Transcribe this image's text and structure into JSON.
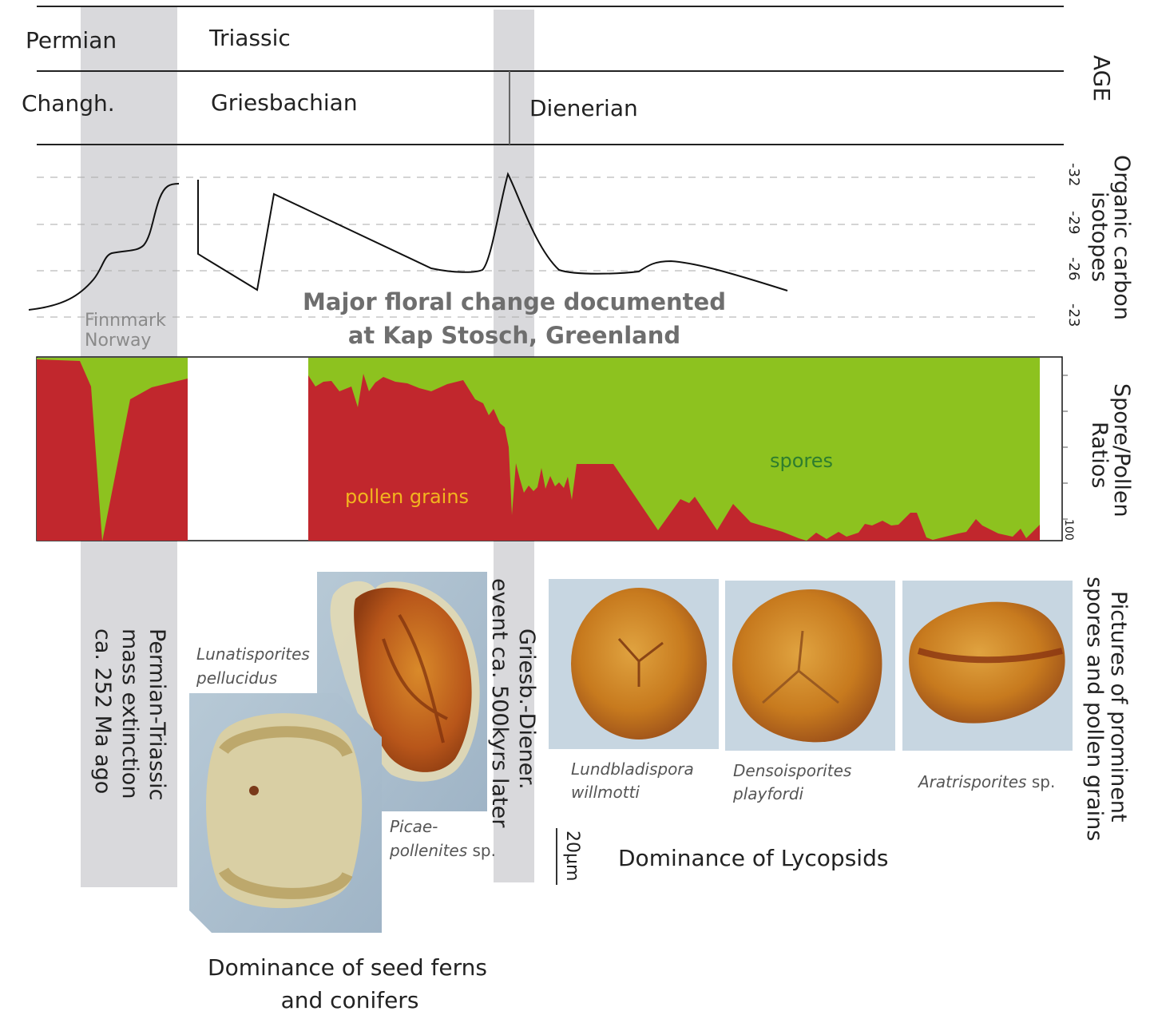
{
  "age": {
    "axis_label": "AGE",
    "periods": [
      "Permian",
      "Triassic"
    ],
    "stages": [
      "Changh.",
      "Griesbachian",
      "Dienerian"
    ]
  },
  "isotopes": {
    "axis_label_line1": "Organic carbon",
    "axis_label_line2": "isotopes",
    "ticks": [
      "-32",
      "-29",
      "-26",
      "-23"
    ]
  },
  "locations": {
    "finnmark_line1": "Finnmark",
    "finnmark_line2": "Norway",
    "kap_line1": "Major floral change documented",
    "kap_line2": "at Kap Stosch, Greenland"
  },
  "ratios": {
    "axis_label_line1": "Spore/Pollen",
    "axis_label_line2": "Ratios",
    "tick": "100",
    "spores_label": "spores",
    "pollen_label": "pollen grains",
    "colors": {
      "spores": "#8dc21f",
      "pollen": "#c1272d"
    }
  },
  "events": {
    "extinction_line1": "Permian-Triassic",
    "extinction_line2": "mass extinction",
    "extinction_line3": "ca. 252 Ma ago",
    "griesb_line1": "Griesb.-Diener.",
    "griesb_line2": "event  ca. 500kyrs later"
  },
  "pictures": {
    "axis_label_line1": "Pictures of prominent",
    "axis_label_line2": "spores and pollen grains",
    "lunatisporites_line1": "Lunatisporites",
    "lunatisporites_line2": "pellucidus",
    "picae_line1": "Picae-",
    "picae_line2": "pollenites",
    "picae_suffix": " sp.",
    "lundbladispora_line1": "Lundbladispora",
    "lundbladispora_line2": "willmotti",
    "densoisporites_line1": "Densoisporites",
    "densoisporites_line2": "playfordi",
    "aratrisporites": "Aratrisporites",
    "aratrisporites_suffix": " sp.",
    "scale": "20µm",
    "seedferns_line1": "Dominance of seed ferns",
    "seedferns_line2": "and conifers",
    "lycopsids": "Dominance of Lycopsids"
  }
}
